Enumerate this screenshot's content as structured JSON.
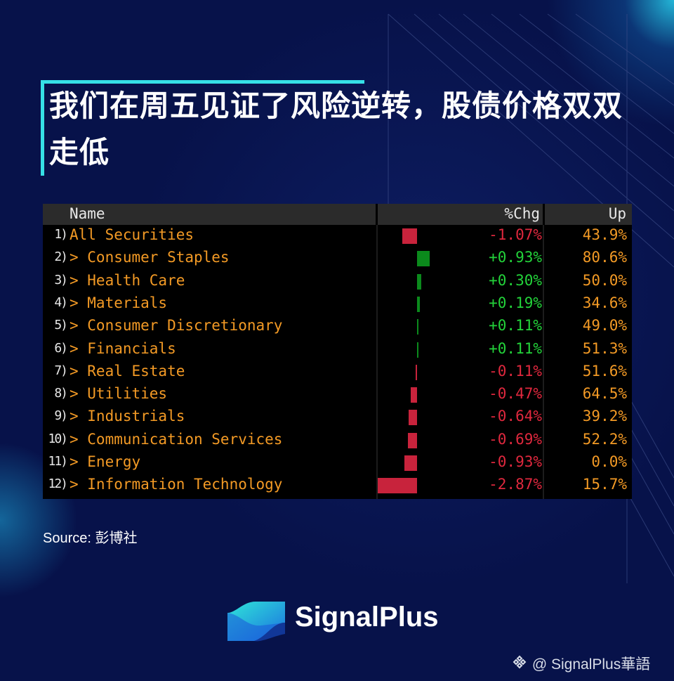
{
  "headline": "我们在周五见证了风险逆转，股债价格双双走低",
  "table": {
    "headers": {
      "name": "Name",
      "chg": "%Chg",
      "up": "Up"
    },
    "rows": [
      {
        "num": "1)",
        "name": "All Securities",
        "chg": "-1.07%",
        "chg_value": -1.07,
        "up": "43.9%"
      },
      {
        "num": "2)",
        "name": "> Consumer Staples",
        "chg": "+0.93%",
        "chg_value": 0.93,
        "up": "80.6%"
      },
      {
        "num": "3)",
        "name": "> Health Care",
        "chg": "+0.30%",
        "chg_value": 0.3,
        "up": "50.0%"
      },
      {
        "num": "4)",
        "name": "> Materials",
        "chg": "+0.19%",
        "chg_value": 0.19,
        "up": "34.6%"
      },
      {
        "num": "5)",
        "name": "> Consumer Discretionary",
        "chg": "+0.11%",
        "chg_value": 0.11,
        "up": "49.0%"
      },
      {
        "num": "6)",
        "name": "> Financials",
        "chg": "+0.11%",
        "chg_value": 0.11,
        "up": "51.3%"
      },
      {
        "num": "7)",
        "name": "> Real Estate",
        "chg": "-0.11%",
        "chg_value": -0.11,
        "up": "51.6%"
      },
      {
        "num": "8)",
        "name": "> Utilities",
        "chg": "-0.47%",
        "chg_value": -0.47,
        "up": "64.5%"
      },
      {
        "num": "9)",
        "name": "> Industrials",
        "chg": "-0.64%",
        "chg_value": -0.64,
        "up": "39.2%"
      },
      {
        "num": "10)",
        "name": "> Communication Services",
        "chg": "-0.69%",
        "chg_value": -0.69,
        "up": "52.2%"
      },
      {
        "num": "11)",
        "name": "> Energy",
        "chg": "-0.93%",
        "chg_value": -0.93,
        "up": "0.0%"
      },
      {
        "num": "12)",
        "name": "> Information Technology",
        "chg": "-2.87%",
        "chg_value": -2.87,
        "up": "15.7%"
      }
    ]
  },
  "colors": {
    "background": "#07124a",
    "accent": "#36e0e6",
    "positive": "#23d33a",
    "positive_bar": "#0b8a1c",
    "negative": "#e0283e",
    "negative_bar": "#c8233c",
    "label": "#f39a25"
  },
  "source": "Source: 彭博社",
  "brand": {
    "name": "SignalPlus",
    "logo_icon": "signalplus-wave-logo-icon"
  },
  "watermark": {
    "icon": "binance-diamond-icon",
    "text": "@ SignalPlus華語"
  }
}
